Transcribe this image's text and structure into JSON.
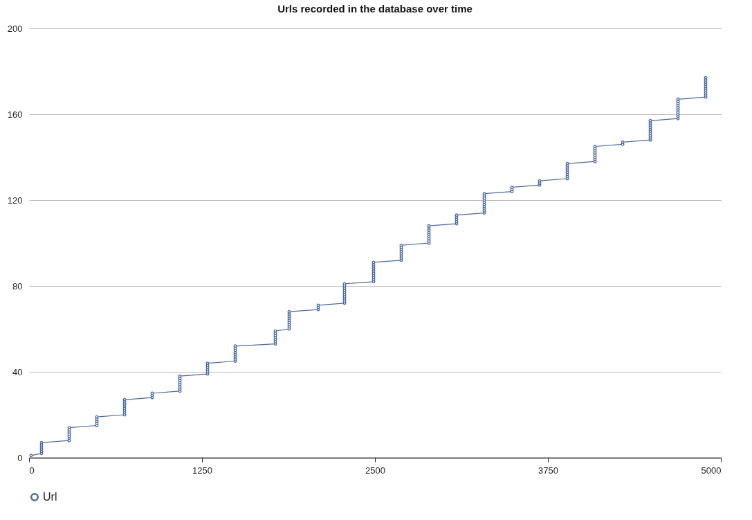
{
  "chart_data": {
    "type": "line",
    "title": "Urls recorded in the database over time",
    "x": [
      15,
      90,
      90,
      90,
      90,
      90,
      90,
      290,
      290,
      290,
      290,
      290,
      290,
      290,
      490,
      490,
      490,
      490,
      490,
      690,
      690,
      690,
      690,
      690,
      690,
      690,
      690,
      890,
      890,
      890,
      1090,
      1090,
      1090,
      1090,
      1090,
      1090,
      1090,
      1090,
      1290,
      1290,
      1290,
      1290,
      1290,
      1290,
      1490,
      1490,
      1490,
      1490,
      1490,
      1490,
      1490,
      1490,
      1780,
      1780,
      1780,
      1780,
      1780,
      1780,
      1780,
      1880,
      1880,
      1880,
      1880,
      1880,
      1880,
      1880,
      1880,
      1880,
      2090,
      2090,
      2090,
      2280,
      2280,
      2280,
      2280,
      2280,
      2280,
      2280,
      2280,
      2280,
      2280,
      2490,
      2490,
      2490,
      2490,
      2490,
      2490,
      2490,
      2490,
      2490,
      2490,
      2690,
      2690,
      2690,
      2690,
      2690,
      2690,
      2690,
      2690,
      2890,
      2890,
      2890,
      2890,
      2890,
      2890,
      2890,
      2890,
      2890,
      3090,
      3090,
      3090,
      3090,
      3090,
      3290,
      3290,
      3290,
      3290,
      3290,
      3290,
      3290,
      3290,
      3290,
      3290,
      3490,
      3490,
      3490,
      3690,
      3690,
      3690,
      3890,
      3890,
      3890,
      3890,
      3890,
      3890,
      3890,
      3890,
      4090,
      4090,
      4090,
      4090,
      4090,
      4090,
      4090,
      4090,
      4290,
      4290,
      4490,
      4490,
      4490,
      4490,
      4490,
      4490,
      4490,
      4490,
      4490,
      4490,
      4690,
      4690,
      4690,
      4690,
      4690,
      4690,
      4690,
      4690,
      4690,
      4690,
      4890,
      4890,
      4890,
      4890,
      4890,
      4890,
      4890,
      4890,
      4890,
      4890
    ],
    "series": [
      {
        "name": "Url",
        "color": "#4a6a9e",
        "values": [
          1,
          2,
          3,
          4,
          5,
          6,
          7,
          8,
          9,
          10,
          11,
          12,
          13,
          14,
          15,
          16,
          17,
          18,
          19,
          20,
          21,
          22,
          23,
          24,
          25,
          26,
          27,
          28,
          29,
          30,
          31,
          32,
          33,
          34,
          35,
          36,
          37,
          38,
          39,
          40,
          41,
          42,
          43,
          44,
          45,
          46,
          47,
          48,
          49,
          50,
          51,
          52,
          53,
          54,
          55,
          56,
          57,
          58,
          59,
          60,
          61,
          62,
          63,
          64,
          65,
          66,
          67,
          68,
          69,
          70,
          71,
          72,
          73,
          74,
          75,
          76,
          77,
          78,
          79,
          80,
          81,
          82,
          83,
          84,
          85,
          86,
          87,
          88,
          89,
          90,
          91,
          92,
          93,
          94,
          95,
          96,
          97,
          98,
          99,
          100,
          101,
          102,
          103,
          104,
          105,
          106,
          107,
          108,
          109,
          110,
          111,
          112,
          113,
          114,
          115,
          116,
          117,
          118,
          119,
          120,
          121,
          122,
          123,
          124,
          125,
          126,
          127,
          128,
          129,
          130,
          131,
          132,
          133,
          134,
          135,
          136,
          137,
          138,
          139,
          140,
          141,
          142,
          143,
          144,
          145,
          146,
          147,
          148,
          149,
          150,
          151,
          152,
          153,
          154,
          155,
          156,
          157,
          158,
          159,
          160,
          161,
          162,
          163,
          164,
          165,
          166,
          167,
          168,
          169,
          170,
          171,
          172,
          173,
          174,
          175,
          176,
          177
        ]
      }
    ],
    "xlim": [
      0,
      5000
    ],
    "xticks": [
      0,
      1250,
      2500,
      3750,
      5000
    ],
    "ylim": [
      0,
      200
    ],
    "yticks": [
      0,
      40,
      80,
      120,
      160,
      200
    ],
    "grid": "y",
    "legend": "bottom",
    "marker": "circle"
  }
}
